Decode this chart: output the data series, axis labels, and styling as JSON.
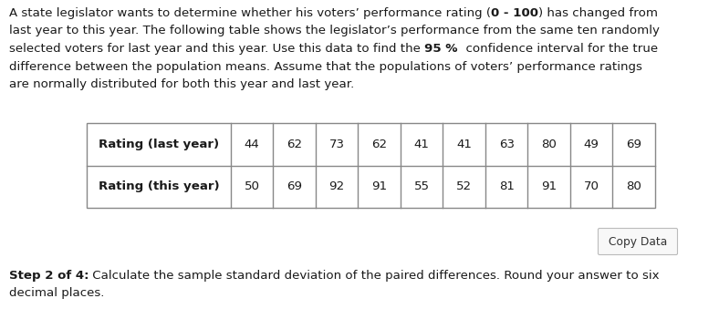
{
  "row1_label": "Rating (last year)",
  "row2_label": "Rating (this year)",
  "row1_values": [
    44,
    62,
    73,
    62,
    41,
    41,
    63,
    80,
    49,
    69
  ],
  "row2_values": [
    50,
    69,
    92,
    91,
    55,
    52,
    81,
    91,
    70,
    80
  ],
  "copy_button_text": "Copy Data",
  "step_text_bold": "Step 2 of 4:",
  "step_text_line1": " Calculate the sample standard deviation of the paired differences. Round your answer to six",
  "step_text_line2": "decimal places.",
  "para_line1": "A state legislator wants to determine whether his voters’ performance rating (0 - 100) has changed from",
  "para_line1_pre_bold": "A state legislator wants to determine whether his voters’ performance rating (",
  "para_line1_bold": "0 - 100",
  "para_line1_post_bold": ") has changed from",
  "para_line2": "last year to this year. The following table shows the legislator’s performance from the same ten randomly",
  "para_line3_pre_bold": "selected voters for last year and this year. Use this data to find the ",
  "para_line3_bold": "95 %",
  "para_line3_post_bold": "  confidence interval for the true",
  "para_line4": "difference between the population means. Assume that the populations of voters’ performance ratings",
  "para_line5": "are normally distributed for both this year and last year.",
  "bg_color": "#ffffff",
  "text_color": "#1a1a1a",
  "table_border_color": "#888888",
  "font_size_para": 9.6,
  "font_size_table": 9.6,
  "font_size_step": 9.6,
  "fig_w": 7.88,
  "fig_h": 3.5,
  "dpi": 100
}
